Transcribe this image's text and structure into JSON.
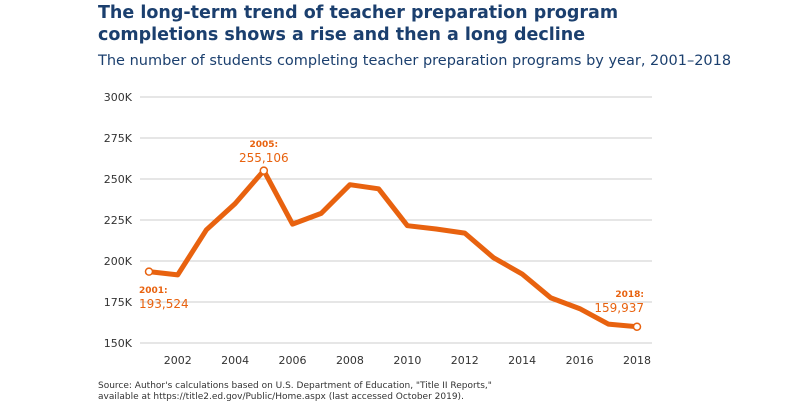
{
  "title": "The long-term trend of teacher preparation program completions shows a rise and then a long decline",
  "subtitle": "The number of students completing teacher preparation programs by year, 2001–2018",
  "source": {
    "line1": "Source: Author's calculations based on U.S. Department of Education, \"Title II Reports,\"",
    "line2": "available at https://title2.ed.gov/Public/Home.aspx (last accessed October 2019)."
  },
  "colors": {
    "line": "#e8620f",
    "title": "#1b3f6e",
    "grid": "#cccccc",
    "text": "#333333"
  },
  "chart_data": {
    "type": "line",
    "title": "The number of students completing teacher preparation programs by year, 2001–2018",
    "xlabel": "",
    "ylabel": "",
    "ylim": [
      150000,
      300000
    ],
    "xlim": [
      2001,
      2018
    ],
    "grid": true,
    "y_ticks": [
      150000,
      175000,
      200000,
      225000,
      250000,
      275000,
      300000
    ],
    "y_tick_labels": [
      "150K",
      "175K",
      "200K",
      "225K",
      "250K",
      "275K",
      "300K"
    ],
    "x_ticks": [
      2002,
      2004,
      2006,
      2008,
      2010,
      2012,
      2014,
      2016,
      2018
    ],
    "x_tick_labels": [
      "2002",
      "2004",
      "2006",
      "2008",
      "2010",
      "2012",
      "2014",
      "2016",
      "2018"
    ],
    "x": [
      2001,
      2002,
      2003,
      2004,
      2005,
      2006,
      2007,
      2008,
      2009,
      2010,
      2011,
      2012,
      2013,
      2014,
      2015,
      2016,
      2017,
      2018
    ],
    "series": [
      {
        "values": [
          193524,
          191500,
          219000,
          235000,
          255106,
          222500,
          229000,
          246500,
          244000,
          221500,
          219500,
          217000,
          202000,
          192000,
          177500,
          171000,
          161500,
          159937
        ]
      }
    ],
    "annotations": [
      {
        "x": 2001,
        "y": 193524,
        "label": "2001:",
        "value": "193,524"
      },
      {
        "x": 2005,
        "y": 255106,
        "label": "2005:",
        "value": "255,106"
      },
      {
        "x": 2018,
        "y": 159937,
        "label": "2018:",
        "value": "159,937"
      }
    ]
  }
}
